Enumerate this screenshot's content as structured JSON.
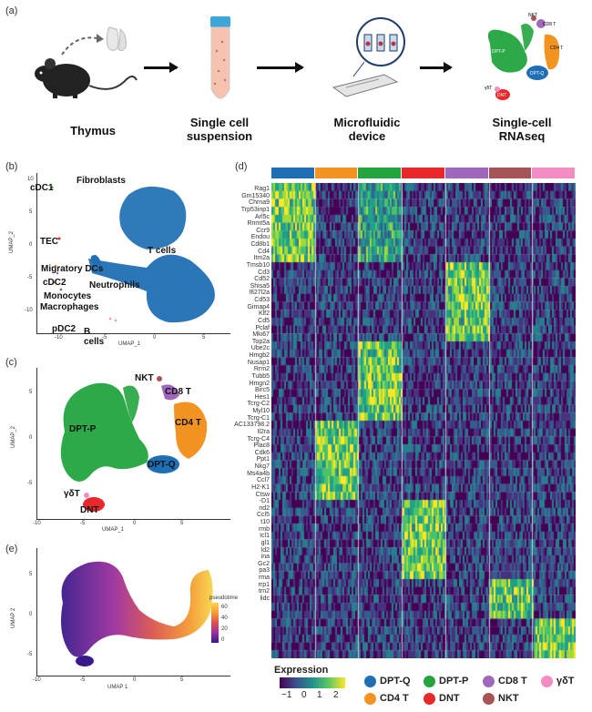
{
  "panels": {
    "a": {
      "letter": "(a)",
      "steps": [
        {
          "label": "Thymus"
        },
        {
          "label": "Single cell\nsuspension"
        },
        {
          "label": "Microfluidic\ndevice"
        },
        {
          "label": "Single-cell\nRNAseq"
        }
      ],
      "mini_labels": [
        "NKT",
        "CD8 T",
        "CD4 T",
        "DPT-P",
        "DPT-Q",
        "DNT",
        "γδT"
      ]
    },
    "b": {
      "letter": "(b)",
      "xlabel": "UMAP_1",
      "ylabel": "UMAP_2",
      "xticks": [
        "-10",
        "-5",
        "0",
        "5"
      ],
      "yticks": [
        "10",
        "5",
        "0",
        "-5",
        "-10"
      ],
      "labels": [
        "cDC1",
        "Fibroblasts",
        "TEC",
        "T cells",
        "Migratory DCs",
        "cDC2",
        "Neutrophils",
        "Monocytes",
        "Macrophages",
        "pDC2",
        "B\ncells"
      ]
    },
    "c": {
      "letter": "(c)",
      "xlabel": "UMAP_1",
      "ylabel": "UMAP_2",
      "xticks": [
        "-10",
        "-5",
        "0",
        "5"
      ],
      "yticks": [
        "5",
        "0",
        "-5"
      ],
      "labels": [
        "NKT",
        "CD8 T",
        "CD4 T",
        "DPT-P",
        "DPT-Q",
        "γδT",
        "DNT"
      ]
    },
    "e": {
      "letter": "(e)",
      "xlabel": "UMAP 1",
      "ylabel": "UMAP 2",
      "xticks": [
        "-10",
        "-5",
        "0",
        "5"
      ],
      "yticks": [
        "5",
        "0",
        "-5"
      ],
      "colorbar_title": "pseudotime",
      "colorbar_ticks": [
        "60",
        "40",
        "20",
        "0"
      ]
    },
    "d": {
      "letter": "(d)",
      "cluster_colors": [
        "#1f6fb4",
        "#f39322",
        "#23a43e",
        "#e8282a",
        "#a068bd",
        "#a65456",
        "#f38cc3"
      ],
      "genes": [
        "Rag1",
        "Gm15340",
        "Chrna9",
        "Trp53inp1",
        "Arl5c",
        "Rnmt5a",
        "Ccr9",
        "Endou",
        "Cd8b1",
        "Cd4",
        "Itm2a",
        "Tmsb10",
        "Cd3",
        "Cd52",
        "Shisa5",
        "Ifi27l2a",
        "Cd53",
        "Gimap4",
        "Klf2",
        "Cd5",
        "Pclaf",
        "Mki67",
        "Top2a",
        "Ube2c",
        "Hmgb2",
        "Nusap1",
        "Rrm2",
        "Tubb5",
        "Hmgn2",
        "Birc5",
        "Hes1",
        "Tcrg-C2",
        "Myl10",
        "Tcrg-C1",
        "AC133798.2",
        "Il2ra",
        "Tcrg-C4",
        "Plac8",
        "Cdk6",
        "Ppt1",
        "Nkg7",
        "Ms4a4b",
        "Ccl7",
        "H2-K1",
        "Ctsw",
        "-D1",
        "nd2",
        "Ccl5",
        "t10",
        "rmb",
        "Icl1",
        "gl1",
        "Id2",
        "ina",
        "Gc2",
        "pa3",
        "rma",
        "rrp1",
        "trn2",
        "lidc"
      ],
      "colorbar": {
        "title": "Expression",
        "ticks": [
          "−1",
          "0",
          "1",
          "2"
        ]
      },
      "legend": [
        {
          "label": "DPT-Q",
          "color": "#1f6fb4"
        },
        {
          "label": "DPT-P",
          "color": "#23a43e"
        },
        {
          "label": "CD8 T",
          "color": "#a068bd"
        },
        {
          "label": "γδT",
          "color": "#f38cc3"
        },
        {
          "label": "CD4 T",
          "color": "#f39322"
        },
        {
          "label": "DNT",
          "color": "#e8282a"
        },
        {
          "label": "NKT",
          "color": "#a65456"
        }
      ]
    }
  }
}
